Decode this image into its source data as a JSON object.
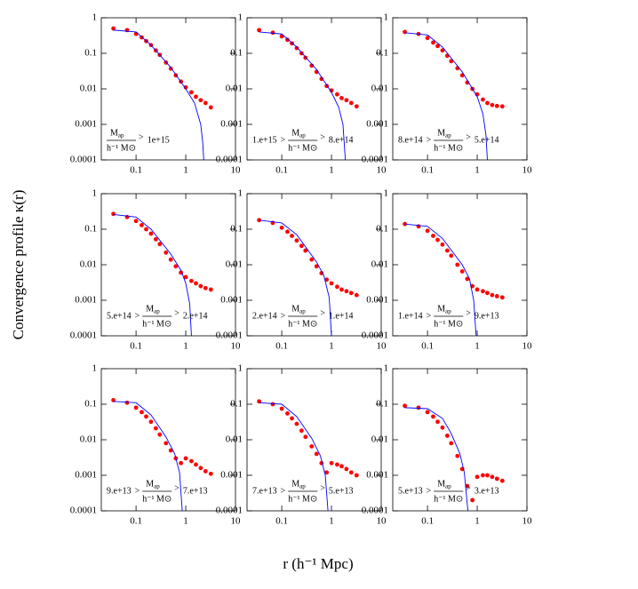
{
  "ylabel": "Convergence profile κ(r)",
  "xlabel": "r (h⁻¹ Mpc)",
  "chart_data": [
    {
      "type": "scatter",
      "xlim": [
        0.02,
        10
      ],
      "ylim": [
        0.0001,
        1
      ],
      "xticks": [
        0.1,
        1,
        10
      ],
      "yticks": [
        1,
        0.1,
        0.01,
        0.001,
        0.0001
      ],
      "log_x": true,
      "log_y": true,
      "annotation": {
        "relations": [
          ">"
        ],
        "numerator": "M",
        "numerator_sub": "ap",
        "denominator": "h⁻¹ M⊙",
        "right": "1e+15"
      },
      "series": [
        {
          "color": "#ff0000",
          "style": "points",
          "x": [
            0.035,
            0.066,
            0.1,
            0.13,
            0.16,
            0.2,
            0.25,
            0.3,
            0.4,
            0.5,
            0.63,
            0.8,
            1.0,
            1.3,
            1.6,
            2.0,
            2.5,
            3.2
          ],
          "values": [
            0.5,
            0.45,
            0.35,
            0.28,
            0.22,
            0.17,
            0.12,
            0.09,
            0.055,
            0.037,
            0.024,
            0.016,
            0.011,
            0.008,
            0.006,
            0.0048,
            0.004,
            0.003
          ]
        },
        {
          "color": "#0000ff",
          "style": "line",
          "x": [
            0.035,
            0.1,
            0.2,
            0.5,
            1,
            1.5,
            2,
            2.2,
            2.3
          ],
          "values": [
            0.45,
            0.4,
            0.17,
            0.04,
            0.01,
            0.004,
            0.001,
            0.0003,
            0.0001
          ]
        }
      ]
    },
    {
      "type": "scatter",
      "xlim": [
        0.02,
        10
      ],
      "ylim": [
        0.0001,
        1
      ],
      "xticks": [
        0.1,
        1,
        10
      ],
      "yticks": [
        1,
        0.1,
        0.01,
        0.001,
        0.0001
      ],
      "log_x": true,
      "log_y": true,
      "annotation": {
        "left": "1.e+15",
        "relations": [
          ">",
          ">"
        ],
        "numerator": "M",
        "numerator_sub": "ap",
        "denominator": "h⁻¹ M⊙",
        "right": "8.e+14"
      },
      "series": [
        {
          "color": "#ff0000",
          "style": "points",
          "x": [
            0.035,
            0.066,
            0.1,
            0.13,
            0.16,
            0.2,
            0.25,
            0.3,
            0.4,
            0.5,
            0.63,
            0.8,
            1.0,
            1.3,
            1.6,
            2.0,
            2.5,
            3.2
          ],
          "values": [
            0.45,
            0.38,
            0.3,
            0.24,
            0.19,
            0.14,
            0.1,
            0.075,
            0.045,
            0.03,
            0.019,
            0.012,
            0.009,
            0.007,
            0.0055,
            0.0048,
            0.004,
            0.0032
          ]
        },
        {
          "color": "#0000ff",
          "style": "line",
          "x": [
            0.035,
            0.1,
            0.2,
            0.5,
            1,
            1.4,
            1.7,
            1.9
          ],
          "values": [
            0.4,
            0.35,
            0.15,
            0.035,
            0.008,
            0.003,
            0.001,
            0.0001
          ]
        }
      ]
    },
    {
      "type": "scatter",
      "xlim": [
        0.02,
        10
      ],
      "ylim": [
        0.0001,
        1
      ],
      "xticks": [
        0.1,
        1,
        10
      ],
      "yticks": [
        1,
        0.1,
        0.01,
        0.001,
        0.0001
      ],
      "log_x": true,
      "log_y": true,
      "annotation": {
        "left": "8.e+14",
        "relations": [
          ">",
          ">"
        ],
        "numerator": "M",
        "numerator_sub": "ap",
        "denominator": "h⁻¹ M⊙",
        "right": "5.e+14"
      },
      "series": [
        {
          "color": "#ff0000",
          "style": "points",
          "x": [
            0.035,
            0.066,
            0.1,
            0.13,
            0.16,
            0.2,
            0.25,
            0.3,
            0.4,
            0.5,
            0.63,
            0.8,
            1.0,
            1.3,
            1.6,
            2.0,
            2.5,
            3.2
          ],
          "values": [
            0.4,
            0.35,
            0.27,
            0.2,
            0.16,
            0.12,
            0.085,
            0.06,
            0.038,
            0.024,
            0.015,
            0.01,
            0.007,
            0.005,
            0.004,
            0.0035,
            0.0033,
            0.0032
          ]
        },
        {
          "color": "#0000ff",
          "style": "line",
          "x": [
            0.035,
            0.1,
            0.2,
            0.5,
            1,
            1.3,
            1.5,
            1.6
          ],
          "values": [
            0.38,
            0.33,
            0.15,
            0.03,
            0.006,
            0.002,
            0.0005,
            0.0001
          ]
        }
      ]
    },
    {
      "type": "scatter",
      "xlim": [
        0.02,
        10
      ],
      "ylim": [
        0.0001,
        1
      ],
      "xticks": [
        0.1,
        1,
        10
      ],
      "yticks": [
        1,
        0.1,
        0.01,
        0.001,
        0.0001
      ],
      "log_x": true,
      "log_y": true,
      "annotation": {
        "left": "5.e+14",
        "relations": [
          ">",
          ">"
        ],
        "numerator": "M",
        "numerator_sub": "ap",
        "denominator": "h⁻¹ M⊙",
        "right": "2.e+14"
      },
      "series": [
        {
          "color": "#ff0000",
          "style": "points",
          "x": [
            0.035,
            0.066,
            0.1,
            0.13,
            0.16,
            0.2,
            0.25,
            0.3,
            0.4,
            0.5,
            0.63,
            0.8,
            1.0,
            1.3,
            1.6,
            2.0,
            2.5,
            3.2
          ],
          "values": [
            0.27,
            0.22,
            0.17,
            0.13,
            0.1,
            0.075,
            0.052,
            0.038,
            0.022,
            0.014,
            0.009,
            0.006,
            0.0045,
            0.0035,
            0.003,
            0.0025,
            0.0022,
            0.002
          ]
        },
        {
          "color": "#0000ff",
          "style": "line",
          "x": [
            0.035,
            0.1,
            0.2,
            0.5,
            0.8,
            1,
            1.2,
            1.3
          ],
          "values": [
            0.26,
            0.22,
            0.1,
            0.02,
            0.007,
            0.003,
            0.0008,
            0.0001
          ]
        }
      ]
    },
    {
      "type": "scatter",
      "xlim": [
        0.02,
        10
      ],
      "ylim": [
        0.0001,
        1
      ],
      "xticks": [
        0.1,
        1,
        10
      ],
      "yticks": [
        1,
        0.1,
        0.01,
        0.001,
        0.0001
      ],
      "log_x": true,
      "log_y": true,
      "annotation": {
        "left": "2.e+14",
        "relations": [
          ">",
          ">"
        ],
        "numerator": "M",
        "numerator_sub": "ap",
        "denominator": "h⁻¹ M⊙",
        "right": "1.e+14"
      },
      "series": [
        {
          "color": "#ff0000",
          "style": "points",
          "x": [
            0.035,
            0.066,
            0.1,
            0.13,
            0.16,
            0.2,
            0.25,
            0.3,
            0.4,
            0.5,
            0.63,
            0.8,
            1.0,
            1.3,
            1.6,
            2.0,
            2.5,
            3.2
          ],
          "values": [
            0.18,
            0.15,
            0.11,
            0.085,
            0.065,
            0.048,
            0.034,
            0.025,
            0.014,
            0.009,
            0.0058,
            0.0038,
            0.003,
            0.0024,
            0.002,
            0.0018,
            0.0016,
            0.0014
          ]
        },
        {
          "color": "#0000ff",
          "style": "line",
          "x": [
            0.035,
            0.1,
            0.2,
            0.5,
            0.7,
            0.9,
            1.0
          ],
          "values": [
            0.18,
            0.15,
            0.07,
            0.012,
            0.005,
            0.0012,
            0.0001
          ]
        }
      ]
    },
    {
      "type": "scatter",
      "xlim": [
        0.02,
        10
      ],
      "ylim": [
        0.0001,
        1
      ],
      "xticks": [
        0.1,
        1,
        10
      ],
      "yticks": [
        1,
        0.1,
        0.01,
        0.001,
        0.0001
      ],
      "log_x": true,
      "log_y": true,
      "annotation": {
        "left": "1.e+14",
        "relations": [
          ">",
          ">"
        ],
        "numerator": "M",
        "numerator_sub": "ap",
        "denominator": "h⁻¹ M⊙",
        "right": "9.e+13"
      },
      "series": [
        {
          "color": "#ff0000",
          "style": "points",
          "x": [
            0.035,
            0.066,
            0.1,
            0.13,
            0.16,
            0.2,
            0.25,
            0.3,
            0.4,
            0.5,
            0.63,
            0.8,
            1.0,
            1.3,
            1.6,
            2.0,
            2.5,
            3.2
          ],
          "values": [
            0.14,
            0.12,
            0.09,
            0.065,
            0.05,
            0.037,
            0.025,
            0.018,
            0.01,
            0.0065,
            0.004,
            0.0025,
            0.002,
            0.0018,
            0.0016,
            0.0014,
            0.0013,
            0.0012
          ]
        },
        {
          "color": "#0000ff",
          "style": "line",
          "x": [
            0.035,
            0.1,
            0.2,
            0.5,
            0.7,
            0.85,
            0.95
          ],
          "values": [
            0.14,
            0.12,
            0.055,
            0.01,
            0.004,
            0.001,
            0.0001
          ]
        }
      ]
    },
    {
      "type": "scatter",
      "xlim": [
        0.02,
        10
      ],
      "ylim": [
        0.0001,
        1
      ],
      "xticks": [
        0.1,
        1,
        10
      ],
      "yticks": [
        1,
        0.1,
        0.01,
        0.001,
        0.0001
      ],
      "log_x": true,
      "log_y": true,
      "annotation": {
        "left": "9.e+13",
        "relations": [
          ">",
          ">"
        ],
        "numerator": "M",
        "numerator_sub": "ap",
        "denominator": "h⁻¹ M⊙",
        "right": "7.e+13"
      },
      "series": [
        {
          "color": "#ff0000",
          "style": "points",
          "x": [
            0.035,
            0.066,
            0.1,
            0.13,
            0.16,
            0.2,
            0.25,
            0.3,
            0.4,
            0.5,
            0.63,
            0.8,
            1.0,
            1.3,
            1.6,
            2.0,
            2.5,
            3.2
          ],
          "values": [
            0.13,
            0.11,
            0.08,
            0.06,
            0.045,
            0.032,
            0.021,
            0.014,
            0.008,
            0.005,
            0.003,
            0.0022,
            0.003,
            0.0025,
            0.002,
            0.0016,
            0.0013,
            0.0011
          ]
        },
        {
          "color": "#0000ff",
          "style": "line",
          "x": [
            0.035,
            0.1,
            0.2,
            0.4,
            0.6,
            0.75,
            0.85
          ],
          "values": [
            0.12,
            0.11,
            0.05,
            0.012,
            0.004,
            0.0012,
            0.0001
          ]
        }
      ]
    },
    {
      "type": "scatter",
      "xlim": [
        0.02,
        10
      ],
      "ylim": [
        0.0001,
        1
      ],
      "xticks": [
        0.1,
        1,
        10
      ],
      "yticks": [
        1,
        0.1,
        0.01,
        0.001,
        0.0001
      ],
      "log_x": true,
      "log_y": true,
      "annotation": {
        "left": "7.e+13",
        "relations": [
          ">",
          ">"
        ],
        "numerator": "M",
        "numerator_sub": "ap",
        "denominator": "h⁻¹ M⊙",
        "right": "5.e+13"
      },
      "series": [
        {
          "color": "#ff0000",
          "style": "points",
          "x": [
            0.035,
            0.066,
            0.1,
            0.13,
            0.16,
            0.2,
            0.25,
            0.3,
            0.4,
            0.5,
            0.63,
            0.8,
            1.0,
            1.3,
            1.6,
            2.0,
            2.5,
            3.2
          ],
          "values": [
            0.12,
            0.1,
            0.075,
            0.055,
            0.04,
            0.028,
            0.018,
            0.012,
            0.0065,
            0.004,
            0.0022,
            0.0012,
            0.0022,
            0.002,
            0.0018,
            0.0015,
            0.0012,
            0.001
          ]
        },
        {
          "color": "#0000ff",
          "style": "line",
          "x": [
            0.035,
            0.1,
            0.2,
            0.4,
            0.6,
            0.75,
            0.85
          ],
          "values": [
            0.11,
            0.1,
            0.045,
            0.011,
            0.0035,
            0.001,
            0.0001
          ]
        }
      ]
    },
    {
      "type": "scatter",
      "xlim": [
        0.02,
        10
      ],
      "ylim": [
        0.0001,
        1
      ],
      "xticks": [
        0.1,
        1,
        10
      ],
      "yticks": [
        1,
        0.1,
        0.01,
        0.001,
        0.0001
      ],
      "log_x": true,
      "log_y": true,
      "annotation": {
        "left": "5.e+13",
        "relations": [
          ">",
          ">"
        ],
        "numerator": "M",
        "numerator_sub": "ap",
        "denominator": "h⁻¹ M⊙",
        "right": "3.e+13"
      },
      "series": [
        {
          "color": "#ff0000",
          "style": "points",
          "x": [
            0.035,
            0.066,
            0.1,
            0.13,
            0.16,
            0.2,
            0.25,
            0.3,
            0.4,
            0.5,
            0.63,
            0.8,
            1.0,
            1.3,
            1.6,
            2.0,
            2.5,
            3.2
          ],
          "values": [
            0.09,
            0.08,
            0.06,
            0.045,
            0.032,
            0.022,
            0.013,
            0.008,
            0.0035,
            0.0015,
            0.0005,
            0.0002,
            0.0009,
            0.001,
            0.001,
            0.0009,
            0.0008,
            0.0007
          ]
        },
        {
          "color": "#0000ff",
          "style": "line",
          "x": [
            0.035,
            0.1,
            0.2,
            0.3,
            0.45,
            0.55,
            0.65
          ],
          "values": [
            0.08,
            0.075,
            0.04,
            0.015,
            0.004,
            0.0012,
            0.0001
          ]
        }
      ]
    }
  ]
}
